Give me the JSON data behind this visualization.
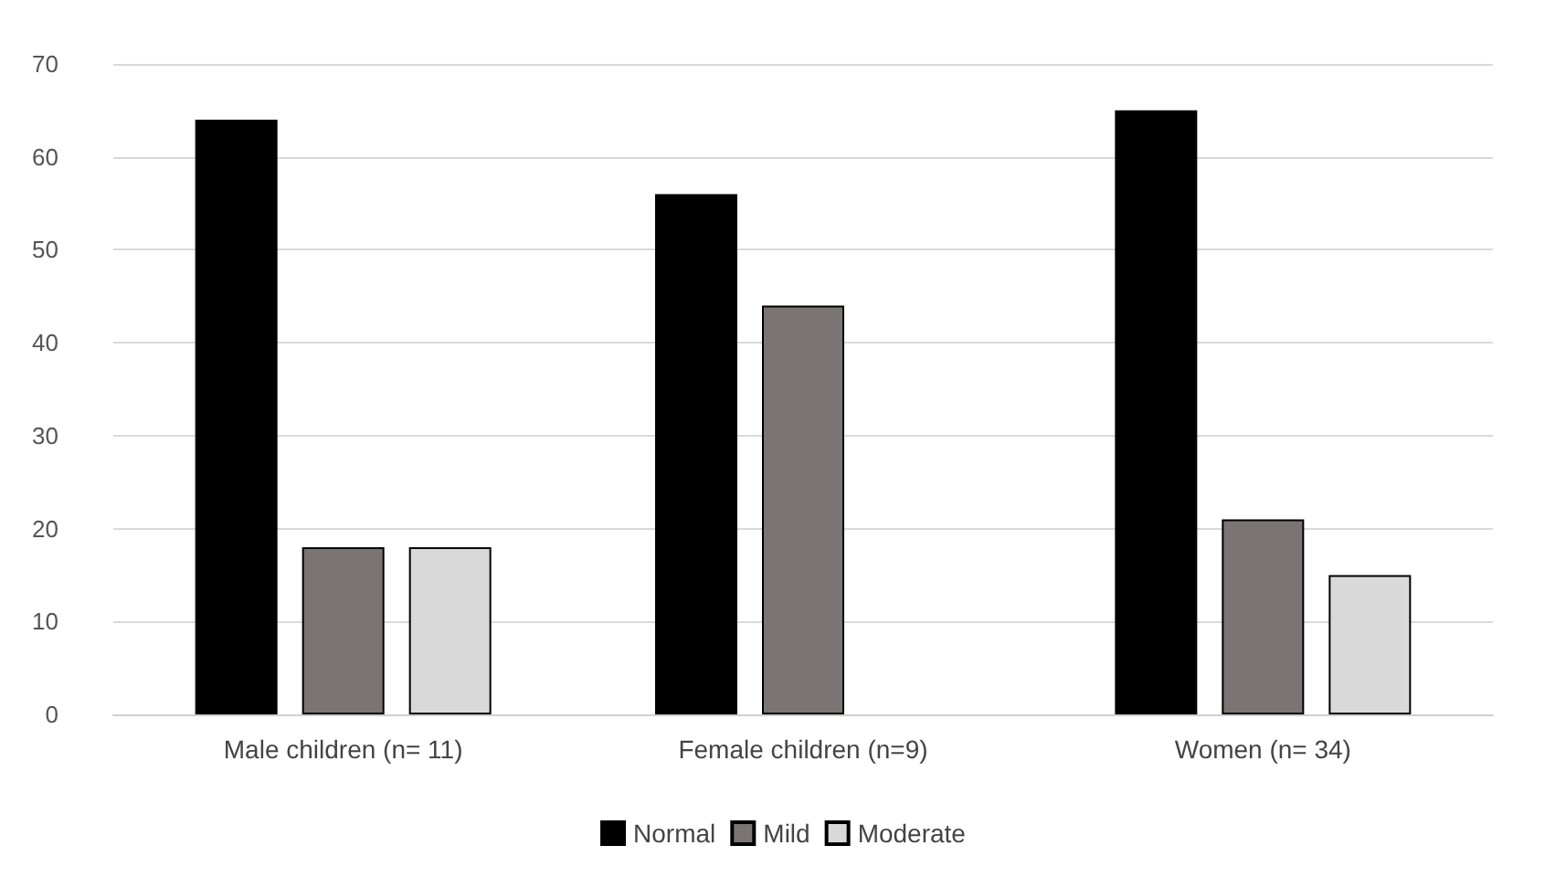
{
  "chart_data": {
    "type": "bar",
    "categories": [
      "Male children (n= 11)",
      "Female children (n=9)",
      "Women (n= 34)"
    ],
    "series": [
      {
        "name": "Normal",
        "color": "#000000",
        "values": [
          64,
          56,
          65
        ]
      },
      {
        "name": "Mild",
        "color": "#7a7574",
        "values": [
          18,
          44,
          21
        ]
      },
      {
        "name": "Moderate",
        "color": "#d9d9d9",
        "values": [
          18,
          null,
          15
        ]
      }
    ],
    "ylim": [
      0,
      70
    ],
    "yticks": [
      0,
      10,
      20,
      30,
      40,
      50,
      60,
      70
    ],
    "grid": "y",
    "legend": "bottom"
  }
}
